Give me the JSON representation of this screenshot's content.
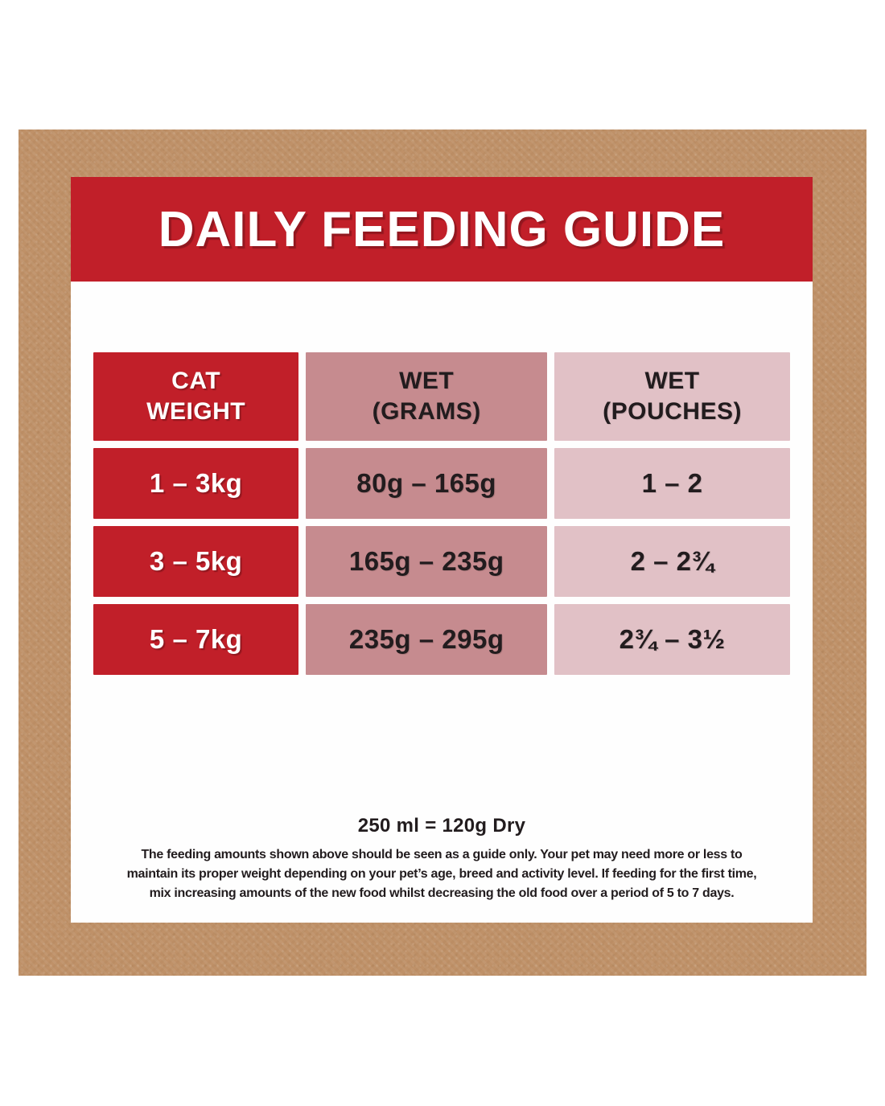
{
  "title": "DAILY FEEDING GUIDE",
  "table": {
    "headers": [
      {
        "line1": "CAT",
        "line2": "WEIGHT"
      },
      {
        "line1": "WET",
        "line2": "(GRAMS)"
      },
      {
        "line1": "WET",
        "line2": "(POUCHES)"
      }
    ],
    "rows": [
      [
        "1 – 3kg",
        "80g – 165g",
        "1 – 2"
      ],
      [
        "3 – 5kg",
        "165g – 235g",
        "2 – 2¾"
      ],
      [
        "5 – 7kg",
        "235g – 295g",
        "2¾ – 3½"
      ]
    ]
  },
  "footer": {
    "dry_equivalence": "250 ml = 120g Dry",
    "disclaimer_lines": [
      "The feeding amounts shown above should be seen as a guide only. Your pet may need more or less to",
      "maintain its proper weight depending on your pet’s age, breed and activity level. If feeding for the first time,",
      "mix increasing amounts of the new food whilst decreasing the old food over a period of 5 to 7 days."
    ]
  },
  "colors": {
    "accent_red": "#c11f29",
    "mauve": "#c68b8f",
    "light_pink": "#e1c1c6",
    "kraft_brown": "#bf9168",
    "text_dark": "#221c1e"
  }
}
